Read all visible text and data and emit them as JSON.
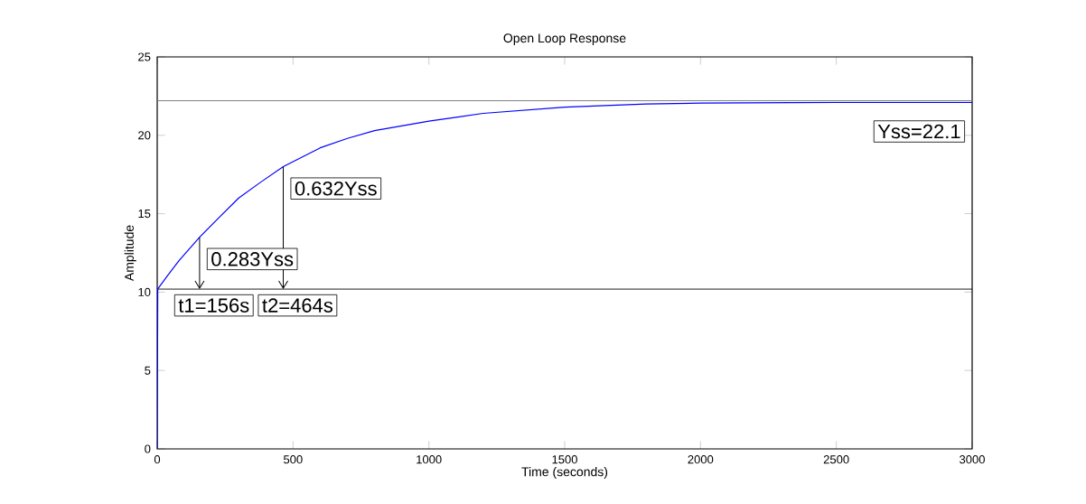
{
  "chart_data": {
    "type": "line",
    "title": "Open Loop Response",
    "xlabel": "Time (seconds)",
    "ylabel": "Amplitude",
    "x": [
      0,
      2,
      40,
      80,
      156,
      230,
      300,
      380,
      464,
      600,
      700,
      800,
      1000,
      1200,
      1500,
      1800,
      2000,
      2500,
      3000
    ],
    "series": [
      {
        "color": "#0000ff",
        "values": [
          0,
          10.2,
          11.1,
          12.0,
          13.5,
          14.8,
          16.0,
          17.0,
          18.0,
          19.2,
          19.8,
          20.3,
          20.9,
          21.4,
          21.8,
          22.0,
          22.05,
          22.1,
          22.1
        ]
      }
    ],
    "xlim": [
      0,
      3000
    ],
    "ylim": [
      0,
      25
    ],
    "xticks": [
      0,
      500,
      1000,
      1500,
      2000,
      2500,
      3000
    ],
    "yticks": [
      0,
      5,
      10,
      15,
      20,
      25
    ],
    "grid": false,
    "marker": "none",
    "line_style": "solid",
    "ref_lines": [
      {
        "axis": "y",
        "value": 22.2,
        "color": "#808080"
      },
      {
        "axis": "y",
        "value": 10.2,
        "color": "#000000"
      }
    ],
    "annotations": [
      {
        "text": "Yss=22.1",
        "x": 3000,
        "y": 22.1
      },
      {
        "text": "0.283Yss",
        "x": 156,
        "y": 13.5
      },
      {
        "text": "t1=156s",
        "x": 156,
        "y": 10.2
      },
      {
        "text": "0.632Yss",
        "x": 464,
        "y": 18.0
      },
      {
        "text": "t2=464s",
        "x": 464,
        "y": 10.2
      }
    ]
  }
}
